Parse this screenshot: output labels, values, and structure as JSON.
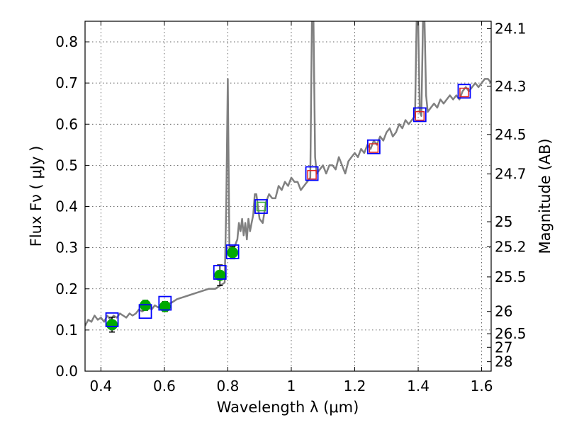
{
  "chart_data": {
    "type": "line",
    "xlabel": "Wavelength  λ (μm)",
    "ylabel": "Flux  Fν  ( μJy )",
    "ylabel_right": "Magnitude (AB)",
    "xlim": [
      0.35,
      1.63
    ],
    "ylim": [
      0.0,
      0.85
    ],
    "grid": true,
    "x_ticks": [
      "0.4",
      "0.6",
      "0.8",
      "1",
      "1.2",
      "1.4",
      "1.6"
    ],
    "y_ticks": [
      "0.0",
      "0.1",
      "0.2",
      "0.3",
      "0.4",
      "0.5",
      "0.6",
      "0.7",
      "0.8"
    ],
    "right_ticks": [
      {
        "label": "24.1",
        "flux": 0.832
      },
      {
        "label": "24.3",
        "flux": 0.692
      },
      {
        "label": "24.5",
        "flux": 0.575
      },
      {
        "label": "24.7",
        "flux": 0.479
      },
      {
        "label": "25",
        "flux": 0.363
      },
      {
        "label": "25.2",
        "flux": 0.302
      },
      {
        "label": "25.5",
        "flux": 0.229
      },
      {
        "label": "26",
        "flux": 0.145
      },
      {
        "label": "26.5",
        "flux": 0.091
      },
      {
        "label": "27",
        "flux": 0.058
      },
      {
        "label": "28",
        "flux": 0.023
      }
    ],
    "series": [
      {
        "type": "line",
        "color": "#808080",
        "x": [
          0.35,
          0.36,
          0.37,
          0.38,
          0.39,
          0.4,
          0.41,
          0.42,
          0.43,
          0.44,
          0.45,
          0.46,
          0.47,
          0.48,
          0.49,
          0.5,
          0.51,
          0.52,
          0.53,
          0.54,
          0.55,
          0.56,
          0.57,
          0.58,
          0.59,
          0.6,
          0.62,
          0.64,
          0.66,
          0.68,
          0.7,
          0.72,
          0.74,
          0.76,
          0.77,
          0.78,
          0.79,
          0.795,
          0.8,
          0.805,
          0.81,
          0.82,
          0.83,
          0.835,
          0.84,
          0.845,
          0.85,
          0.855,
          0.86,
          0.865,
          0.87,
          0.875,
          0.88,
          0.885,
          0.89,
          0.9,
          0.91,
          0.92,
          0.93,
          0.94,
          0.95,
          0.96,
          0.97,
          0.98,
          0.99,
          1.0,
          1.01,
          1.02,
          1.03,
          1.04,
          1.05,
          1.06,
          1.065,
          1.07,
          1.075,
          1.08,
          1.09,
          1.1,
          1.11,
          1.12,
          1.13,
          1.14,
          1.15,
          1.16,
          1.17,
          1.18,
          1.19,
          1.2,
          1.21,
          1.22,
          1.23,
          1.24,
          1.25,
          1.26,
          1.27,
          1.28,
          1.29,
          1.3,
          1.31,
          1.32,
          1.33,
          1.34,
          1.35,
          1.36,
          1.37,
          1.38,
          1.39,
          1.395,
          1.4,
          1.405,
          1.41,
          1.415,
          1.42,
          1.425,
          1.43,
          1.44,
          1.45,
          1.46,
          1.47,
          1.48,
          1.49,
          1.5,
          1.51,
          1.52,
          1.53,
          1.54,
          1.55,
          1.56,
          1.57,
          1.58,
          1.59,
          1.6,
          1.61,
          1.62,
          1.63
        ],
        "y": [
          0.11,
          0.125,
          0.12,
          0.135,
          0.125,
          0.13,
          0.12,
          0.135,
          0.125,
          0.135,
          0.13,
          0.14,
          0.135,
          0.13,
          0.14,
          0.135,
          0.14,
          0.15,
          0.145,
          0.15,
          0.155,
          0.15,
          0.16,
          0.155,
          0.16,
          0.165,
          0.165,
          0.175,
          0.18,
          0.185,
          0.19,
          0.195,
          0.2,
          0.2,
          0.205,
          0.21,
          0.215,
          0.4,
          0.71,
          0.3,
          0.28,
          0.3,
          0.32,
          0.36,
          0.34,
          0.37,
          0.33,
          0.36,
          0.32,
          0.37,
          0.34,
          0.36,
          0.38,
          0.43,
          0.43,
          0.37,
          0.36,
          0.41,
          0.43,
          0.42,
          0.42,
          0.45,
          0.44,
          0.46,
          0.45,
          0.47,
          0.46,
          0.46,
          0.44,
          0.45,
          0.46,
          0.47,
          0.85,
          0.85,
          0.52,
          0.48,
          0.49,
          0.5,
          0.48,
          0.5,
          0.5,
          0.49,
          0.52,
          0.5,
          0.48,
          0.51,
          0.52,
          0.53,
          0.52,
          0.54,
          0.53,
          0.55,
          0.54,
          0.56,
          0.55,
          0.57,
          0.56,
          0.58,
          0.59,
          0.57,
          0.58,
          0.6,
          0.59,
          0.61,
          0.6,
          0.61,
          0.62,
          0.85,
          0.85,
          0.63,
          0.62,
          0.85,
          0.85,
          0.67,
          0.63,
          0.64,
          0.65,
          0.64,
          0.66,
          0.65,
          0.66,
          0.67,
          0.66,
          0.67,
          0.66,
          0.68,
          0.69,
          0.68,
          0.69,
          0.7,
          0.69,
          0.7,
          0.71,
          0.71,
          0.7
        ]
      },
      {
        "type": "points",
        "marker": "circle",
        "color": "#00aa00",
        "x": [
          0.435,
          0.54,
          0.602,
          0.775,
          0.815
        ],
        "y": [
          0.113,
          0.16,
          0.157,
          0.233,
          0.288
        ],
        "err": [
          0.018,
          0.012,
          0.012,
          0.025,
          0.015
        ]
      },
      {
        "type": "points",
        "marker": "square",
        "color": "#0000ff",
        "x": [
          0.435,
          0.54,
          0.602,
          0.775,
          0.815,
          0.905,
          1.065,
          1.26,
          1.405,
          1.545
        ],
        "y": [
          0.125,
          0.145,
          0.165,
          0.24,
          0.29,
          0.4,
          0.48,
          0.545,
          0.623,
          0.68
        ]
      },
      {
        "type": "points",
        "marker": "square-small",
        "color": "#33aa33",
        "x": [
          0.905
        ],
        "y": [
          0.4
        ]
      },
      {
        "type": "points",
        "marker": "square-small",
        "color": "#dd2222",
        "x": [
          1.065,
          1.26,
          1.405,
          1.545
        ],
        "y": [
          0.477,
          0.542,
          0.62,
          0.677
        ]
      }
    ]
  }
}
